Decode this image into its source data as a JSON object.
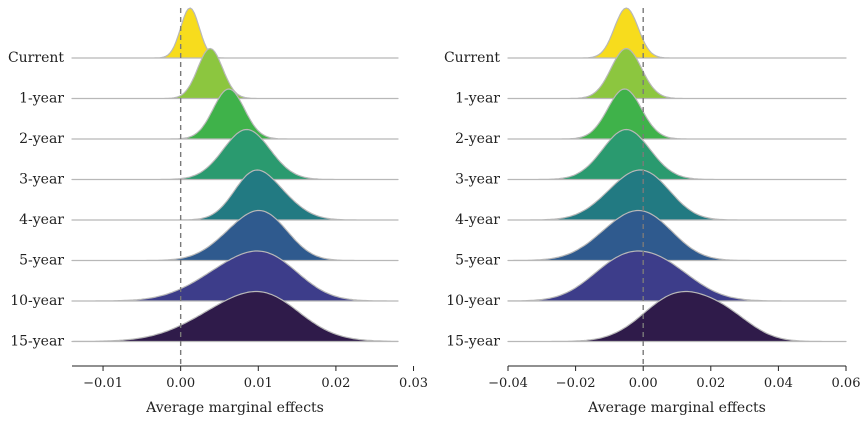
{
  "chart_data": [
    {
      "type": "ridgeline",
      "xlabel": "Average marginal effects",
      "xlim": [
        -0.014,
        0.028
      ],
      "xticks": [
        -0.01,
        0.0,
        0.01,
        0.02,
        0.03
      ],
      "xtick_labels": [
        "−0.01",
        "0.00",
        "0.01",
        "0.02",
        "0.03"
      ],
      "reference_line": 0,
      "series": [
        {
          "name": "Current",
          "color": "#f7dc1d",
          "components": [
            {
              "mu": 0.0012,
              "sd": 0.0012,
              "w": 1
            }
          ]
        },
        {
          "name": "1-year",
          "color": "#8cc63f",
          "components": [
            {
              "mu": 0.0038,
              "sd": 0.0016,
              "w": 1
            }
          ]
        },
        {
          "name": "2-year",
          "color": "#3fb24a",
          "components": [
            {
              "mu": 0.0062,
              "sd": 0.002,
              "w": 1
            }
          ]
        },
        {
          "name": "3-year",
          "color": "#2a9a6f",
          "components": [
            {
              "mu": 0.0085,
              "sd": 0.003,
              "w": 1
            }
          ]
        },
        {
          "name": "4-year",
          "color": "#227a82",
          "components": [
            {
              "mu": 0.009,
              "sd": 0.0025,
              "w": 0.7
            },
            {
              "mu": 0.012,
              "sd": 0.003,
              "w": 0.5
            }
          ]
        },
        {
          "name": "5-year",
          "color": "#2f5a8e",
          "components": [
            {
              "mu": 0.008,
              "sd": 0.0035,
              "w": 0.6
            },
            {
              "mu": 0.0115,
              "sd": 0.003,
              "w": 0.6
            }
          ]
        },
        {
          "name": "10-year",
          "color": "#3d3d8a",
          "components": [
            {
              "mu": 0.007,
              "sd": 0.005,
              "w": 0.6
            },
            {
              "mu": 0.012,
              "sd": 0.004,
              "w": 0.5
            }
          ]
        },
        {
          "name": "15-year",
          "color": "#2f1b4a",
          "components": [
            {
              "mu": 0.008,
              "sd": 0.006,
              "w": 0.8
            },
            {
              "mu": 0.012,
              "sd": 0.004,
              "w": 0.3
            }
          ]
        }
      ]
    },
    {
      "type": "ridgeline",
      "xlabel": "Average marginal effects",
      "xlim": [
        -0.04,
        0.06
      ],
      "xticks": [
        -0.04,
        -0.02,
        0.0,
        0.02,
        0.04,
        0.06
      ],
      "xtick_labels": [
        "−0.04",
        "−0.02",
        "0.00",
        "0.02",
        "0.04",
        "0.06"
      ],
      "reference_line": 0,
      "series": [
        {
          "name": "Current",
          "color": "#f7dc1d",
          "components": [
            {
              "mu": -0.005,
              "sd": 0.0035,
              "w": 1
            }
          ]
        },
        {
          "name": "1-year",
          "color": "#8cc63f",
          "components": [
            {
              "mu": -0.005,
              "sd": 0.0045,
              "w": 1
            }
          ]
        },
        {
          "name": "2-year",
          "color": "#3fb24a",
          "components": [
            {
              "mu": -0.0055,
              "sd": 0.005,
              "w": 1
            }
          ]
        },
        {
          "name": "3-year",
          "color": "#2a9a6f",
          "components": [
            {
              "mu": -0.005,
              "sd": 0.007,
              "w": 1
            }
          ]
        },
        {
          "name": "4-year",
          "color": "#227a82",
          "components": [
            {
              "mu": -0.005,
              "sd": 0.008,
              "w": 0.6
            },
            {
              "mu": 0.003,
              "sd": 0.007,
              "w": 0.5
            }
          ]
        },
        {
          "name": "5-year",
          "color": "#2f5a8e",
          "components": [
            {
              "mu": -0.006,
              "sd": 0.009,
              "w": 0.6
            },
            {
              "mu": 0.003,
              "sd": 0.008,
              "w": 0.5
            }
          ]
        },
        {
          "name": "10-year",
          "color": "#3d3d8a",
          "components": [
            {
              "mu": -0.008,
              "sd": 0.009,
              "w": 0.5
            },
            {
              "mu": 0.005,
              "sd": 0.01,
              "w": 0.6
            }
          ]
        },
        {
          "name": "15-year",
          "color": "#2f1b4a",
          "components": [
            {
              "mu": 0.01,
              "sd": 0.01,
              "w": 0.7
            },
            {
              "mu": 0.025,
              "sd": 0.008,
              "w": 0.3
            }
          ]
        }
      ]
    }
  ]
}
